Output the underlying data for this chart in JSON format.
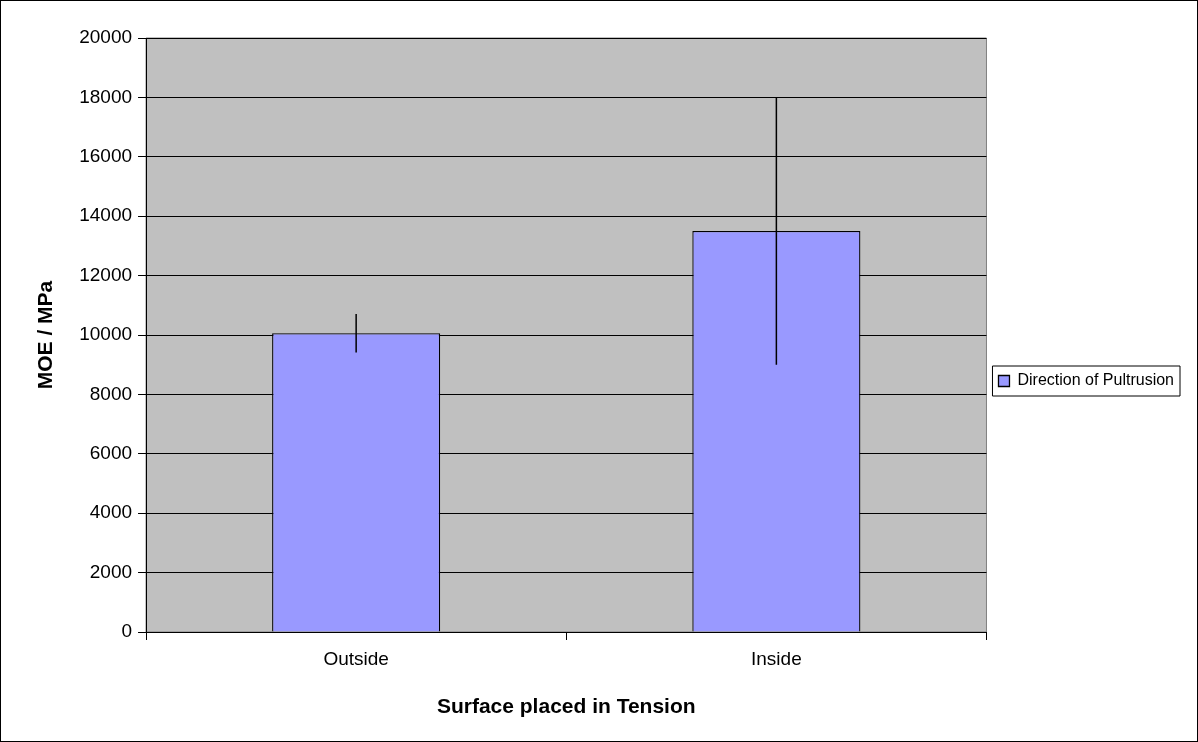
{
  "chart_data": {
    "type": "bar",
    "xlabel": "Surface placed in Tension",
    "ylabel": "MOE / MPa",
    "categories": [
      "Outside",
      "Inside"
    ],
    "series": [
      {
        "name": "Direction of Pultrusion",
        "color": "#9999ff",
        "values": [
          10060,
          13500
        ],
        "errors": [
          650,
          4500
        ]
      }
    ],
    "ylim": [
      0,
      20000
    ],
    "yticks": [
      0,
      2000,
      4000,
      6000,
      8000,
      10000,
      12000,
      14000,
      16000,
      18000,
      20000
    ],
    "grid": "y",
    "legend": "right"
  }
}
